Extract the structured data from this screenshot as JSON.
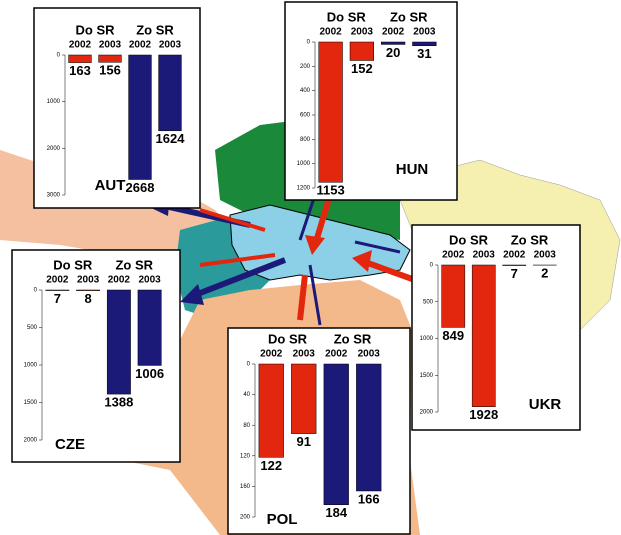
{
  "chart_data": [
    {
      "type": "bar",
      "title": "AUT",
      "groups": [
        "Do SR",
        "Zo SR"
      ],
      "categories": [
        "2002",
        "2003",
        "2002",
        "2003"
      ],
      "values": [
        163,
        156,
        2668,
        1624
      ],
      "colors": [
        "#e3260e",
        "#e3260e",
        "#1c1a78",
        "#1c1a78"
      ],
      "ylim": [
        0,
        3000
      ],
      "yticks": [
        0,
        1000,
        2000,
        3000
      ]
    },
    {
      "type": "bar",
      "title": "HUN",
      "groups": [
        "Do SR",
        "Zo SR"
      ],
      "categories": [
        "2002",
        "2003",
        "2002",
        "2003"
      ],
      "values": [
        1153,
        152,
        20,
        31
      ],
      "colors": [
        "#e3260e",
        "#e3260e",
        "#1c1a78",
        "#1c1a78"
      ],
      "ylim": [
        0,
        1200
      ],
      "yticks": [
        0,
        200,
        400,
        600,
        800,
        1000,
        1200
      ]
    },
    {
      "type": "bar",
      "title": "CZE",
      "groups": [
        "Do SR",
        "Zo SR"
      ],
      "categories": [
        "2002",
        "2003",
        "2002",
        "2003"
      ],
      "values": [
        7,
        8,
        1388,
        1006
      ],
      "colors": [
        "#e3260e",
        "#e3260e",
        "#1c1a78",
        "#1c1a78"
      ],
      "ylim": [
        0,
        2000
      ],
      "yticks": [
        0,
        500,
        1000,
        1500,
        2000
      ]
    },
    {
      "type": "bar",
      "title": "POL",
      "groups": [
        "Do SR",
        "Zo SR"
      ],
      "categories": [
        "2002",
        "2003",
        "2002",
        "2003"
      ],
      "values": [
        122,
        91,
        184,
        166
      ],
      "colors": [
        "#e3260e",
        "#e3260e",
        "#1c1a78",
        "#1c1a78"
      ],
      "ylim": [
        0,
        200
      ],
      "yticks": [
        0,
        40,
        80,
        120,
        160,
        200
      ]
    },
    {
      "type": "bar",
      "title": "UKR",
      "groups": [
        "Do SR",
        "Zo SR"
      ],
      "categories": [
        "2002",
        "2003",
        "2002",
        "2003"
      ],
      "values": [
        849,
        1928,
        7,
        2
      ],
      "colors": [
        "#e3260e",
        "#e3260e",
        "#1c1a78",
        "#1c1a78"
      ],
      "ylim": [
        0,
        2000
      ],
      "yticks": [
        0,
        500,
        1000,
        1500,
        2000
      ]
    }
  ]
}
